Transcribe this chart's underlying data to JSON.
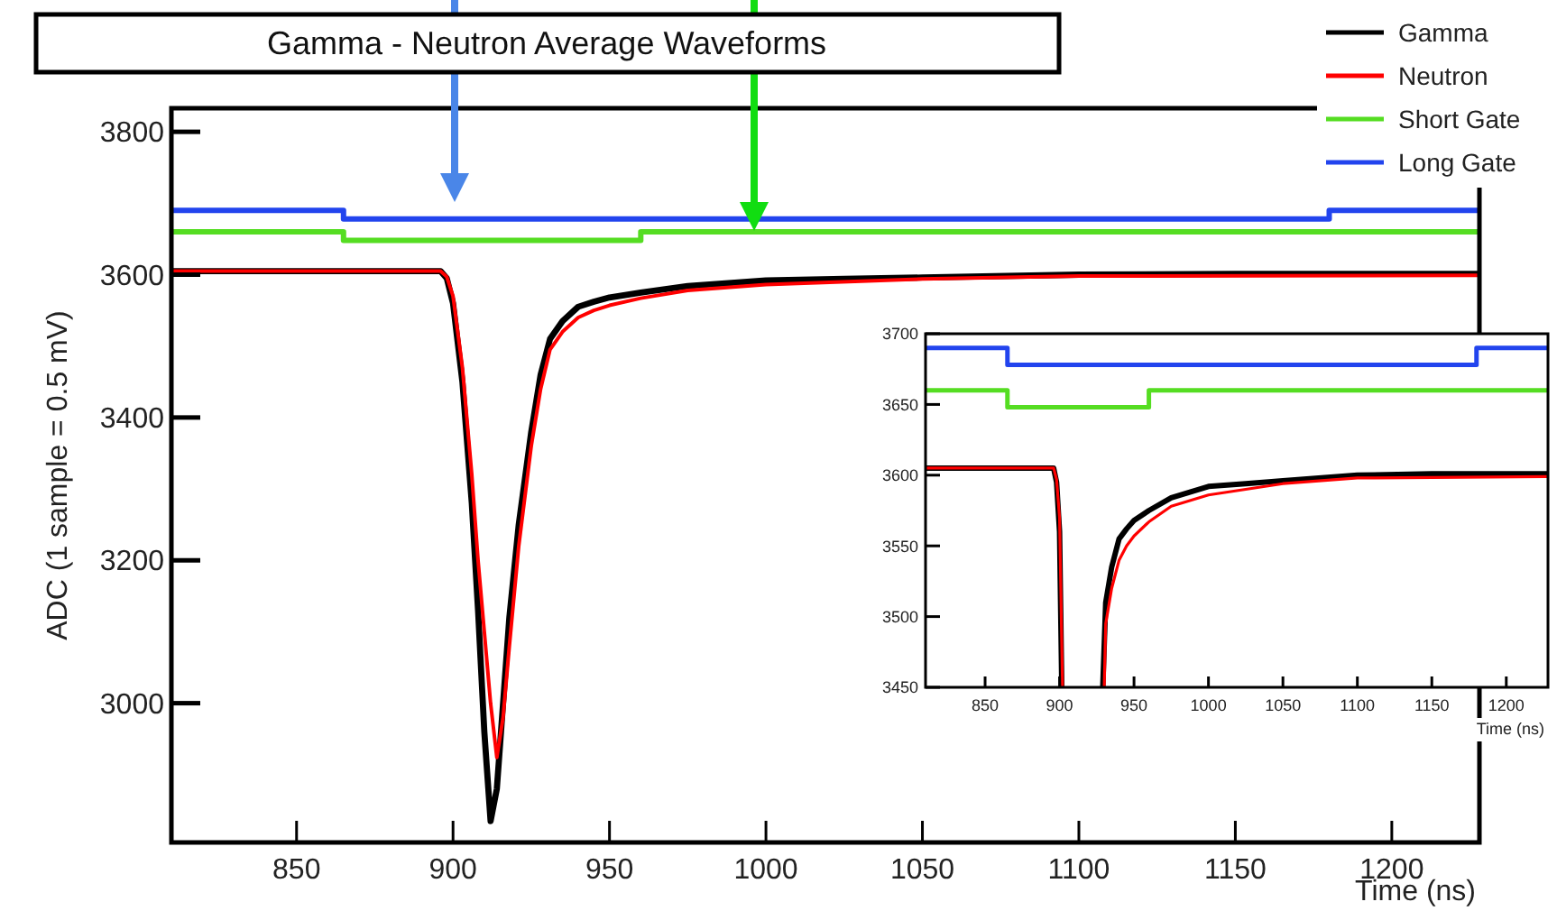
{
  "chart_data": [
    {
      "type": "line",
      "title": "Gamma - Neutron Average Waveforms",
      "xlabel": "Time (ns)",
      "ylabel": "ADC (1 sample = 0.5 mV)",
      "xlim": [
        810,
        1228
      ],
      "ylim": [
        2805,
        3833
      ],
      "xticks": [
        850,
        900,
        950,
        1000,
        1050,
        1100,
        1150,
        1200
      ],
      "yticks": [
        3000,
        3200,
        3400,
        3600,
        3800
      ],
      "grid": false,
      "legend": "top right",
      "marker": "none",
      "series": [
        {
          "name": "Gamma",
          "color": "#000000",
          "x": [
            810,
            896,
            898,
            900,
            903,
            906,
            908,
            910,
            912,
            914,
            916,
            918,
            921,
            925,
            928,
            931,
            935,
            940,
            945,
            950,
            960,
            975,
            1000,
            1025,
            1050,
            1100,
            1150,
            1228
          ],
          "values": [
            3605,
            3605,
            3595,
            3560,
            3450,
            3280,
            3130,
            2960,
            2835,
            2880,
            3000,
            3120,
            3250,
            3380,
            3460,
            3510,
            3535,
            3555,
            3562,
            3568,
            3575,
            3584,
            3592,
            3594,
            3596,
            3600,
            3601,
            3601
          ]
        },
        {
          "name": "Neutron",
          "color": "#ff0000",
          "x": [
            810,
            896,
            898,
            900,
            903,
            906,
            908,
            910,
            912,
            914,
            916,
            918,
            921,
            925,
            928,
            931,
            935,
            940,
            945,
            950,
            960,
            975,
            1000,
            1050,
            1100,
            1228
          ],
          "values": [
            3605,
            3605,
            3597,
            3570,
            3470,
            3320,
            3200,
            3100,
            3000,
            2924,
            2980,
            3080,
            3220,
            3360,
            3440,
            3495,
            3520,
            3540,
            3550,
            3557,
            3567,
            3578,
            3586,
            3594,
            3598,
            3599
          ]
        },
        {
          "name": "Short Gate",
          "color": "#55dd22",
          "type": "step",
          "x": [
            810,
            865,
            960,
            1228
          ],
          "values": [
            3660,
            3648,
            3660,
            3660
          ]
        },
        {
          "name": "Long Gate",
          "color": "#2244ee",
          "type": "step",
          "x": [
            810,
            865,
            1180,
            1228
          ],
          "values": [
            3690,
            3678,
            3690,
            3690
          ]
        }
      ]
    },
    {
      "type": "line",
      "xlabel": "Time (ns)",
      "xlim": [
        810,
        1228
      ],
      "ylim": [
        3450,
        3700
      ],
      "xticks": [
        850,
        900,
        950,
        1000,
        1050,
        1100,
        1150,
        1200
      ],
      "yticks": [
        3450,
        3500,
        3550,
        3600,
        3650,
        3700
      ],
      "grid": false,
      "marker": "none",
      "series": [
        {
          "color": "#000000",
          "x": [
            810,
            896,
            898,
            900,
            901.5,
            915,
            929,
            931,
            935,
            940,
            945,
            950,
            960,
            975,
            1000,
            1025,
            1050,
            1100,
            1150,
            1228
          ],
          "values": [
            3605,
            3605,
            3595,
            3560,
            3450,
            null,
            3450,
            3510,
            3535,
            3555,
            3562,
            3568,
            3575,
            3584,
            3592,
            3594,
            3596,
            3600,
            3601,
            3601
          ]
        },
        {
          "color": "#ff0000",
          "x": [
            810,
            896,
            898,
            900,
            902,
            915,
            930,
            931,
            935,
            940,
            945,
            950,
            960,
            975,
            1000,
            1050,
            1100,
            1228
          ],
          "values": [
            3605,
            3605,
            3597,
            3570,
            3450,
            null,
            3450,
            3495,
            3520,
            3540,
            3550,
            3557,
            3567,
            3578,
            3586,
            3594,
            3598,
            3599
          ]
        },
        {
          "color": "#55dd22",
          "type": "step",
          "x": [
            810,
            865,
            960,
            1228
          ],
          "values": [
            3660,
            3648,
            3660,
            3660
          ]
        },
        {
          "color": "#2244ee",
          "type": "step",
          "x": [
            810,
            865,
            1180,
            1228
          ],
          "values": [
            3690,
            3678,
            3690,
            3690
          ]
        }
      ]
    }
  ]
}
